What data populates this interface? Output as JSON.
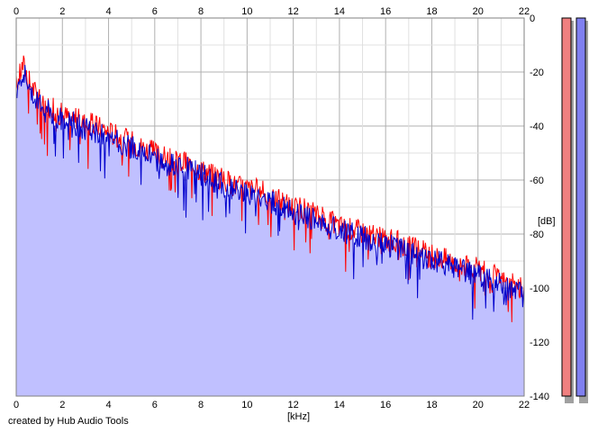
{
  "chart_data": {
    "type": "area",
    "xlabel": "[kHz]",
    "ylabel": "[dB]",
    "xlim": [
      0,
      22
    ],
    "ylim": [
      -140,
      0
    ],
    "x_ticks": [
      0,
      2,
      4,
      6,
      8,
      10,
      12,
      14,
      16,
      18,
      20,
      22
    ],
    "x_tick_labels": [
      "0",
      "2",
      "4",
      "6",
      "8",
      "10",
      "12",
      "14",
      "16",
      "18",
      "20",
      "22"
    ],
    "y_ticks": [
      0,
      -20,
      -40,
      -60,
      -80,
      -100,
      -120,
      -140
    ],
    "y_tick_labels": [
      "0",
      "-20",
      "-40",
      "-60",
      "-80",
      "-100",
      "-120",
      "-140"
    ],
    "grid": true,
    "series": [
      {
        "color": "#ff0000",
        "x": [
          0,
          0.3,
          0.6,
          1,
          1.5,
          2,
          2.5,
          3,
          3.5,
          4,
          4.5,
          5,
          5.5,
          6,
          6.5,
          7,
          7.5,
          8,
          8.5,
          9,
          9.5,
          10,
          10.5,
          11,
          11.5,
          12,
          12.5,
          13,
          13.5,
          14,
          14.5,
          15,
          15.5,
          16,
          16.5,
          17,
          17.5,
          18,
          18.5,
          19,
          19.5,
          20,
          20.5,
          21,
          21.5,
          22
        ],
        "y": [
          -25,
          -17,
          -24,
          -30,
          -33,
          -36,
          -37,
          -39,
          -40,
          -42,
          -44,
          -46,
          -48,
          -50,
          -52,
          -53,
          -54,
          -56,
          -58,
          -60,
          -62,
          -63,
          -64,
          -66,
          -68,
          -70,
          -71,
          -73,
          -75,
          -77,
          -78,
          -79,
          -81,
          -82,
          -83,
          -85,
          -86,
          -88,
          -89,
          -90,
          -92,
          -93,
          -95,
          -97,
          -99,
          -101
        ]
      },
      {
        "color": "#0000cc",
        "x": [
          0,
          0.3,
          0.6,
          1,
          1.5,
          2,
          2.5,
          3,
          3.5,
          4,
          4.5,
          5,
          5.5,
          6,
          6.5,
          7,
          7.5,
          8,
          8.5,
          9,
          9.5,
          10,
          10.5,
          11,
          11.5,
          12,
          12.5,
          13,
          13.5,
          14,
          14.5,
          15,
          15.5,
          16,
          16.5,
          17,
          17.5,
          18,
          18.5,
          19,
          19.5,
          20,
          20.5,
          21,
          21.5,
          22
        ],
        "y": [
          -27,
          -19,
          -26,
          -32,
          -35,
          -38,
          -39,
          -41,
          -42,
          -44,
          -46,
          -48,
          -50,
          -52,
          -54,
          -55,
          -56,
          -58,
          -60,
          -62,
          -64,
          -65,
          -66,
          -68,
          -70,
          -72,
          -73,
          -75,
          -77,
          -79,
          -80,
          -81,
          -83,
          -84,
          -85,
          -87,
          -88,
          -90,
          -91,
          -92,
          -94,
          -95,
          -97,
          -99,
          -101,
          -103
        ]
      }
    ],
    "meters": [
      {
        "color": "#f08080"
      },
      {
        "color": "#8080f0"
      }
    ],
    "fill_color": "#c0c0ff"
  },
  "units": {
    "x": "[kHz]",
    "y": "[dB]"
  },
  "credit": "created by Hub Audio Tools"
}
